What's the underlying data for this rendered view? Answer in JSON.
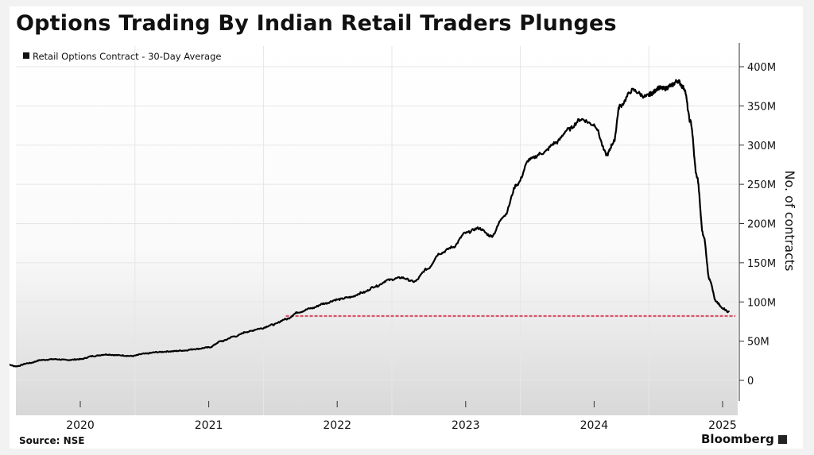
{
  "page": {
    "title": "Options Trading By Indian Retail Traders Plunges",
    "source": "Source: NSE",
    "brand": "Bloomberg"
  },
  "chart_data": {
    "type": "line",
    "title": "Options Trading By Indian Retail Traders Plunges",
    "xlabel": "",
    "ylabel": "No. of contracts",
    "xlim": [
      2019.4,
      2025.15
    ],
    "ylim": [
      -20,
      410
    ],
    "x_ticks": [
      2020,
      2021,
      2022,
      2023,
      2024,
      2025
    ],
    "x_tick_labels": [
      "2020",
      "2021",
      "2022",
      "2023",
      "2024",
      "2025"
    ],
    "y_ticks": [
      0,
      50,
      100,
      150,
      200,
      250,
      300,
      350,
      400
    ],
    "y_tick_labels": [
      "0",
      "50M",
      "100M",
      "150M",
      "200M",
      "250M",
      "300M",
      "350M",
      "400M"
    ],
    "grid": true,
    "legend_position": "top-left",
    "line_color": "#000000",
    "reference_line_color": "#d9546a",
    "reference_line": {
      "y": 82,
      "x_start": 2021.6,
      "x_end": 2025.1
    },
    "series": [
      {
        "name": "Retail Options Contract - 30-Day Average",
        "units": "M",
        "x": [
          2019.4,
          2019.5,
          2019.6,
          2019.7,
          2019.8,
          2019.9,
          2020.0,
          2020.1,
          2020.2,
          2020.3,
          2020.4,
          2020.5,
          2020.6,
          2020.7,
          2020.8,
          2020.9,
          2021.0,
          2021.1,
          2021.2,
          2021.3,
          2021.4,
          2021.5,
          2021.6,
          2021.7,
          2021.8,
          2021.9,
          2022.0,
          2022.1,
          2022.2,
          2022.3,
          2022.4,
          2022.5,
          2022.6,
          2022.7,
          2022.8,
          2022.9,
          2023.0,
          2023.1,
          2023.2,
          2023.3,
          2023.4,
          2023.5,
          2023.6,
          2023.7,
          2023.8,
          2023.9,
          2024.0,
          2024.1,
          2024.15,
          2024.2,
          2024.3,
          2024.4,
          2024.45,
          2024.5,
          2024.55,
          2024.6,
          2024.65,
          2024.7,
          2024.75,
          2024.8,
          2024.85,
          2024.9,
          2024.95,
          2025.0,
          2025.05
        ],
        "values": [
          22,
          18,
          22,
          26,
          27,
          26,
          27,
          31,
          33,
          32,
          31,
          34,
          36,
          37,
          38,
          40,
          42,
          50,
          56,
          62,
          66,
          71,
          78,
          87,
          92,
          98,
          103,
          106,
          112,
          120,
          128,
          131,
          126,
          142,
          162,
          170,
          188,
          194,
          184,
          210,
          250,
          282,
          290,
          303,
          320,
          333,
          326,
          288,
          303,
          350,
          370,
          362,
          366,
          373,
          372,
          376,
          382,
          373,
          330,
          260,
          185,
          128,
          100,
          92,
          87
        ]
      }
    ]
  }
}
